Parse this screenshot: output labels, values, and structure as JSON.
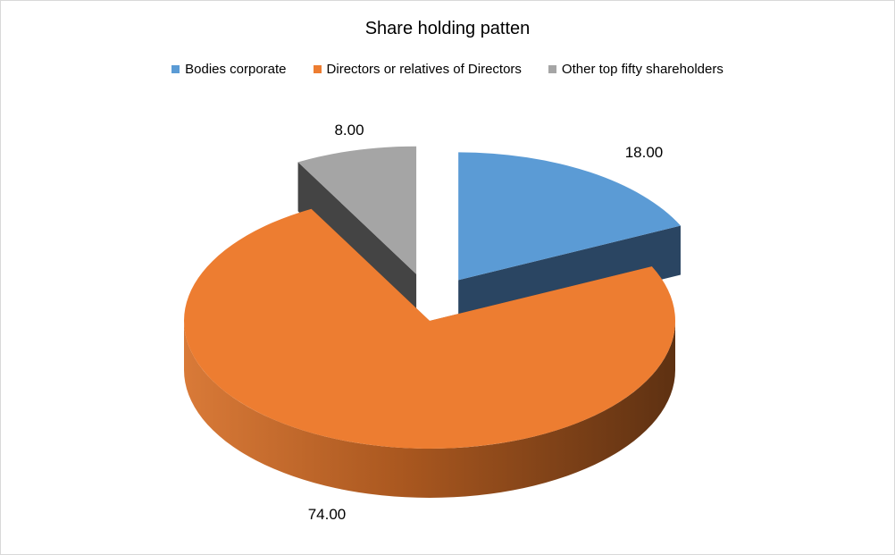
{
  "chart_data": {
    "type": "pie",
    "title": "Share holding patten",
    "legend_position": "top",
    "series": [
      {
        "name": "Bodies corporate",
        "value": 18.0,
        "label": "18.00",
        "color": "#5B9BD5",
        "side_color": "#2A4562"
      },
      {
        "name": "Directors or relatives of Directors",
        "value": 74.0,
        "label": "74.00",
        "color": "#ED7D31",
        "side_color": "#A85822"
      },
      {
        "name": "Other top fifty shareholders",
        "value": 8.0,
        "label": "8.00",
        "color": "#A5A5A5",
        "side_color": "#444444"
      }
    ]
  }
}
